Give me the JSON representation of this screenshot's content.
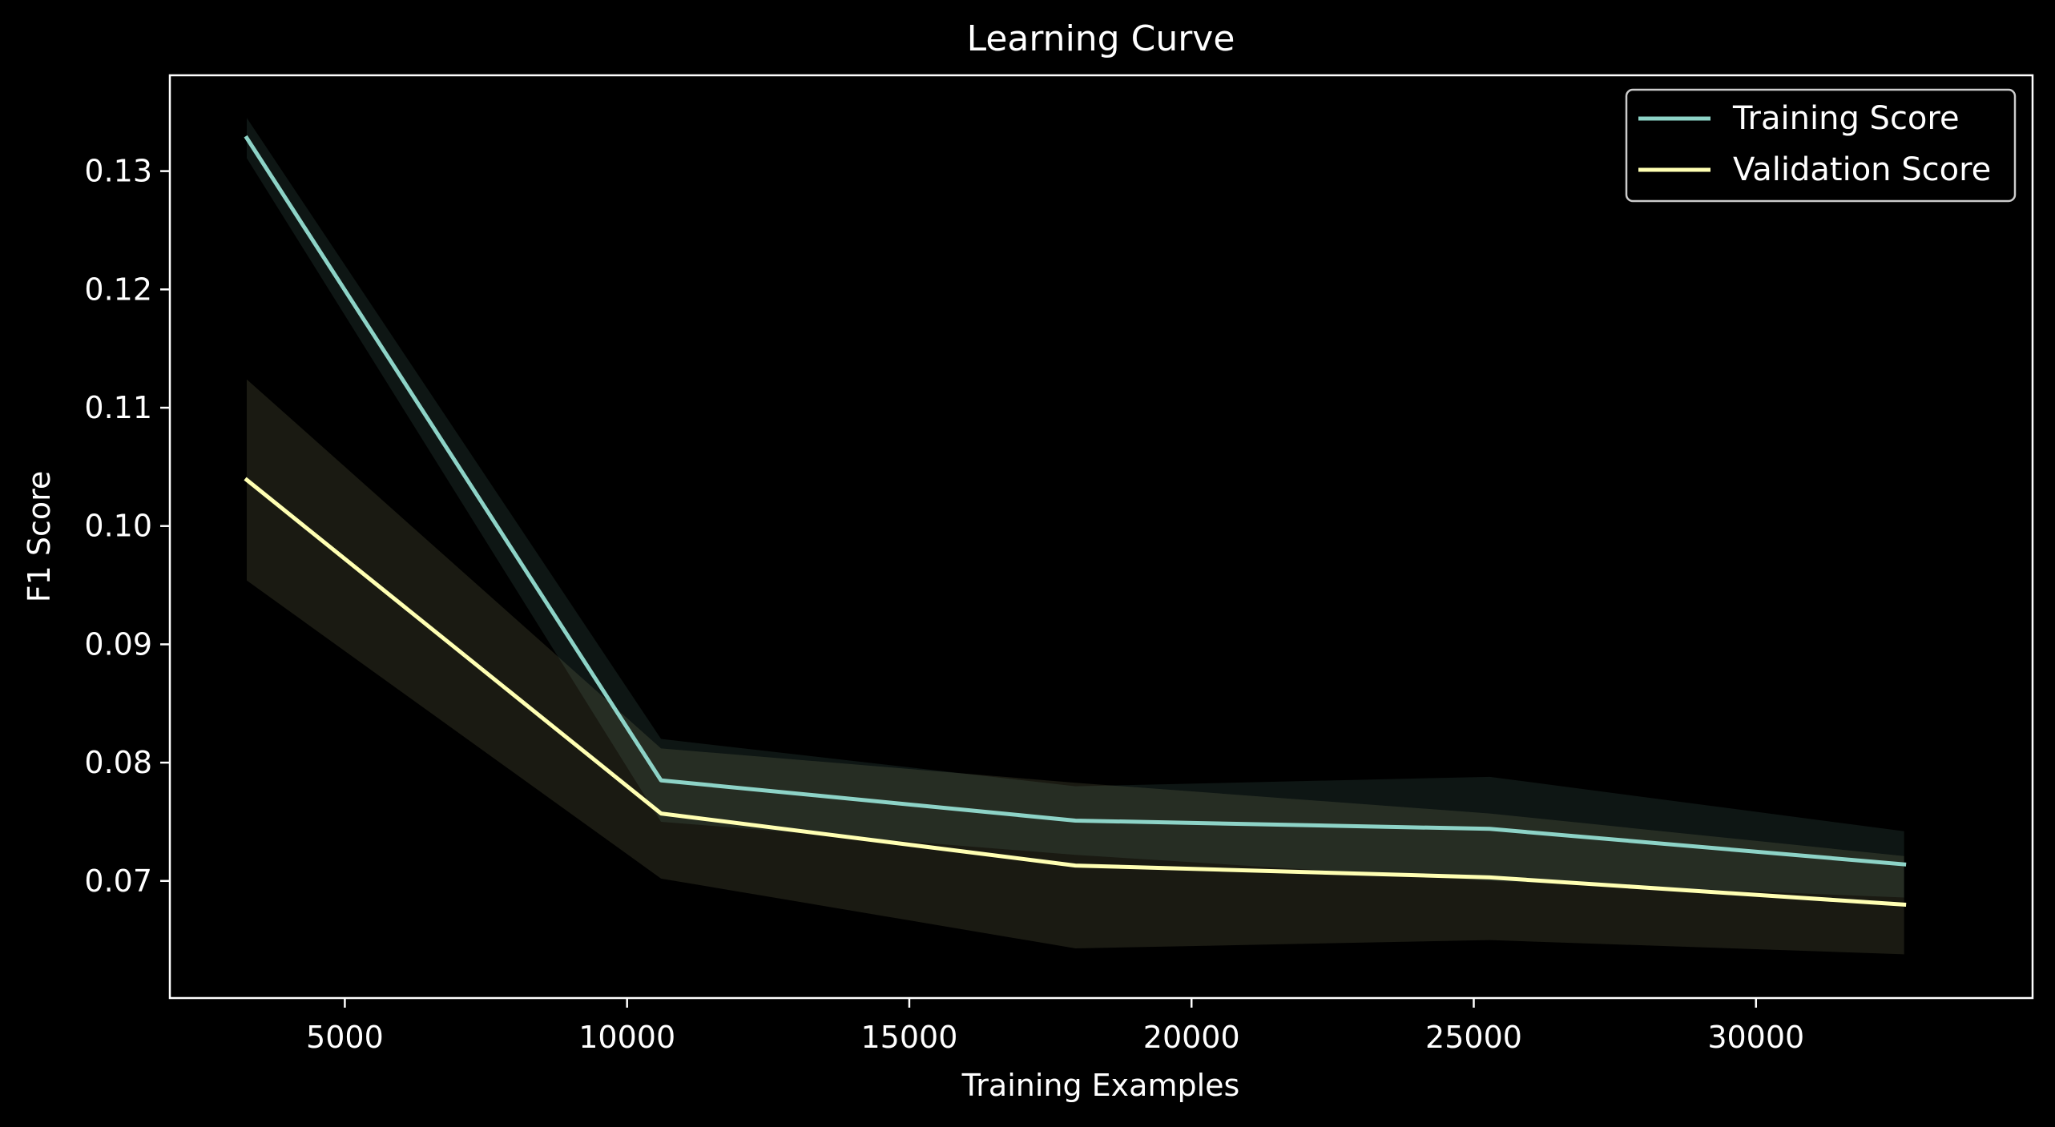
{
  "chart_data": {
    "type": "line",
    "title": "Learning Curve",
    "xlabel": "Training Examples",
    "ylabel": "F1 Score",
    "xlim": [
      1900,
      34900
    ],
    "ylim": [
      0.0601,
      0.1381
    ],
    "xticks": [
      5000,
      10000,
      15000,
      20000,
      25000,
      30000
    ],
    "yticks": [
      0.07,
      0.08,
      0.09,
      0.1,
      0.11,
      0.12,
      0.13
    ],
    "xtick_labels": [
      "5000",
      "10000",
      "15000",
      "20000",
      "25000",
      "30000"
    ],
    "ytick_labels": [
      "0.07",
      "0.08",
      "0.09",
      "0.10",
      "0.11",
      "0.12",
      "0.13"
    ],
    "grid": false,
    "legend_position": "top-right",
    "x": [
      3262,
      10602,
      17943,
      25284,
      32624
    ],
    "series": [
      {
        "name": "Training Score",
        "color": "#8dd3c7",
        "values": [
          0.1328,
          0.0785,
          0.0751,
          0.0744,
          0.0714
        ],
        "band_upper": [
          0.1345,
          0.082,
          0.078,
          0.0788,
          0.0742
        ],
        "band_lower": [
          0.1311,
          0.075,
          0.0722,
          0.07,
          0.0686
        ]
      },
      {
        "name": "Validation Score",
        "color": "#ffffb3",
        "values": [
          0.1039,
          0.0757,
          0.0713,
          0.0703,
          0.068
        ],
        "band_upper": [
          0.1124,
          0.0812,
          0.0783,
          0.0757,
          0.0721
        ],
        "band_lower": [
          0.0954,
          0.0702,
          0.0643,
          0.065,
          0.0638
        ]
      }
    ]
  }
}
